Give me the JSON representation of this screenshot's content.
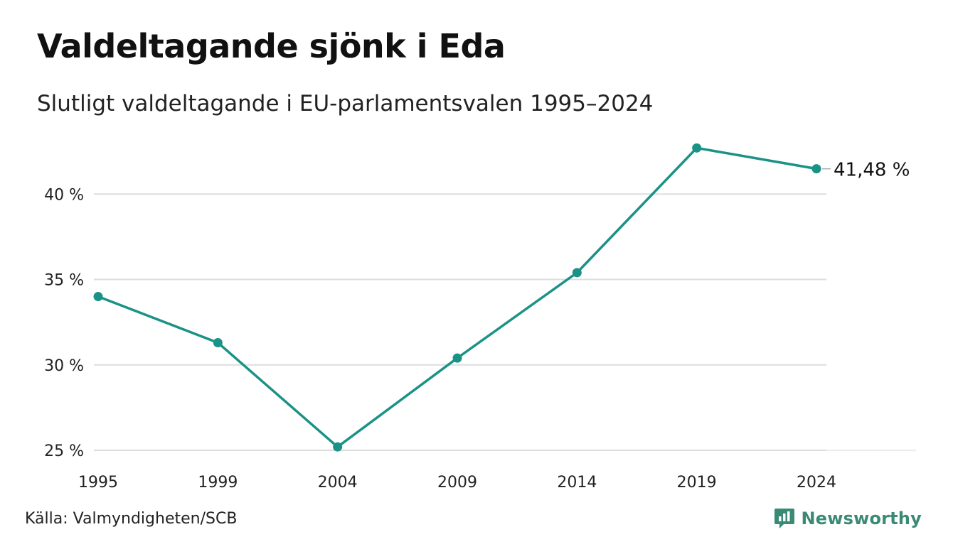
{
  "title": "Valdeltagande sjönk i Eda",
  "subtitle": "Slutligt valdeltagande i EU-parlamentsvalen 1995–2024",
  "source": "Källa: Valmyndigheten/SCB",
  "brand": {
    "name": "Newsworthy",
    "icon": "newsworthy-logo-icon",
    "color": "#3a8a75"
  },
  "chart_data": {
    "type": "line",
    "categories": [
      "1995",
      "1999",
      "2004",
      "2009",
      "2014",
      "2019",
      "2024"
    ],
    "series": [
      {
        "values": [
          34.0,
          31.3,
          25.2,
          30.4,
          35.4,
          42.7,
          41.48
        ],
        "color": "#1a9286"
      }
    ],
    "yticks": [
      25,
      30,
      35,
      40
    ],
    "ytick_labels": [
      "25 %",
      "30 %",
      "35 %",
      "40 %"
    ],
    "end_label": "41,48 %",
    "ylim": [
      25,
      43
    ],
    "grid": true,
    "xlabel": "",
    "ylabel": ""
  }
}
